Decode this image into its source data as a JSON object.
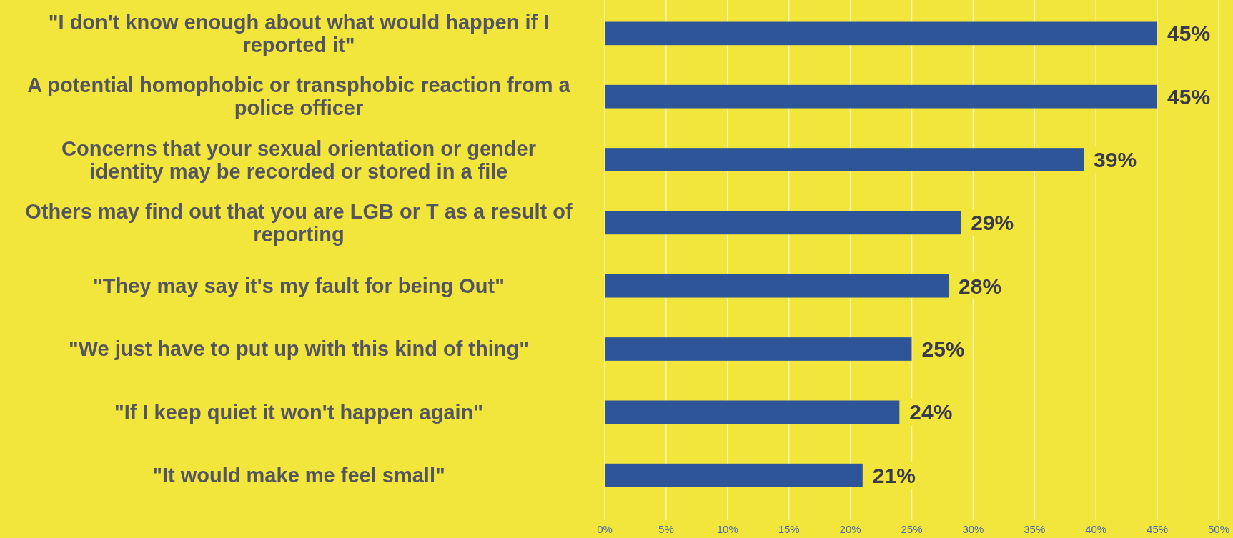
{
  "chart_data": {
    "type": "bar",
    "orientation": "horizontal",
    "categories": [
      "\"I don't know enough about what would happen if I reported it\"",
      "A potential homophobic or transphobic reaction from a police officer",
      "Concerns that your sexual orientation or gender identity may be recorded or stored in a file",
      "Others may find out that you are LGB or T as a result of reporting",
      "\"They may say it's my fault for being Out\"",
      "\"We just have to put up with this kind of thing\"",
      "\"If I keep quiet it won't happen again\"",
      "\"It would make me feel small\""
    ],
    "values": [
      45,
      45,
      39,
      29,
      28,
      25,
      24,
      21
    ],
    "value_labels": [
      "45%",
      "45%",
      "39%",
      "29%",
      "28%",
      "25%",
      "24%",
      "21%"
    ],
    "color": "#2e5597",
    "xlim": [
      0,
      50
    ],
    "xticks": [
      {
        "value": 0,
        "label": "0%"
      },
      {
        "value": 5,
        "label": "5%"
      },
      {
        "value": 10,
        "label": "10%"
      },
      {
        "value": 15,
        "label": "15%"
      },
      {
        "value": 20,
        "label": "20%"
      },
      {
        "value": 25,
        "label": "25%"
      },
      {
        "value": 30,
        "label": "30%"
      },
      {
        "value": 35,
        "label": "35%"
      },
      {
        "value": 40,
        "label": "40%"
      },
      {
        "value": 45,
        "label": "45%"
      },
      {
        "value": 50,
        "label": "50%"
      }
    ],
    "grid": "x"
  }
}
